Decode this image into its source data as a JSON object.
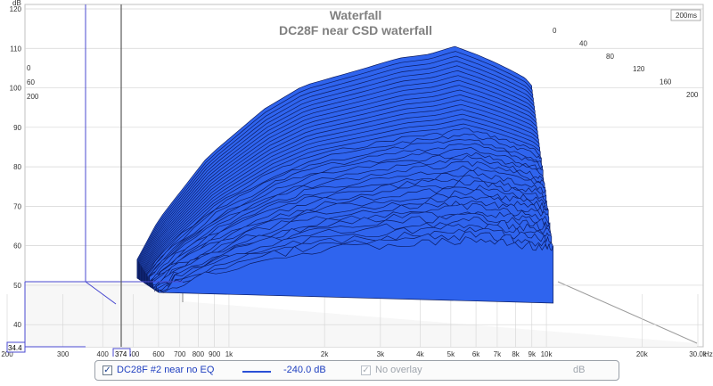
{
  "chart_data": {
    "type": "area",
    "title": "Waterfall",
    "subtitle": "DC28F near CSD waterfall",
    "y_unit": "dB",
    "x_unit": "Hz",
    "z_unit": "200ms",
    "y_ticks": [
      "120",
      "110",
      "100",
      "90",
      "80",
      "70",
      "60",
      "50",
      "40"
    ],
    "y_floor_label": "34.4",
    "x_ticks": [
      "200",
      "300",
      "400",
      "500",
      "600",
      "700",
      "800",
      "900",
      "1k",
      "2k",
      "3k",
      "4k",
      "5k",
      "6k",
      "7k",
      "8k",
      "9k",
      "10k",
      "20k",
      "30.0k"
    ],
    "x_extra_labels": [
      "Hz"
    ],
    "cursor_x_label": "374",
    "time_ticks_right": [
      "0",
      "40",
      "80",
      "120",
      "160",
      "200"
    ],
    "time_ticks_left": [
      "0",
      "60",
      "200"
    ],
    "ylim": [
      34.4,
      120
    ],
    "xlim": [
      200,
      30000
    ],
    "grid": true,
    "series": [
      {
        "name": "DC28F #2 near no EQ",
        "x": [
          600,
          700,
          1000,
          1500,
          2000,
          3000,
          4000,
          5000,
          6000,
          7000,
          8000,
          9000,
          10000,
          10500
        ],
        "y": [
          52,
          62,
          78,
          90,
          96,
          100,
          103,
          104,
          106,
          104,
          102,
          100,
          98,
          96
        ]
      }
    ]
  },
  "legend": {
    "trace_label": "DC28F #2 near no EQ",
    "trace_value": "-240.0 dB",
    "overlay_label": "No overlay",
    "overlay_unit": "dB"
  },
  "colors": {
    "surface": "#2f64ee",
    "surface_edge": "#0c1c60",
    "grid": "#d4d4d4",
    "cursor": "#5b5b5b",
    "axis_blue": "#4a4ad0",
    "title": "#808080"
  }
}
